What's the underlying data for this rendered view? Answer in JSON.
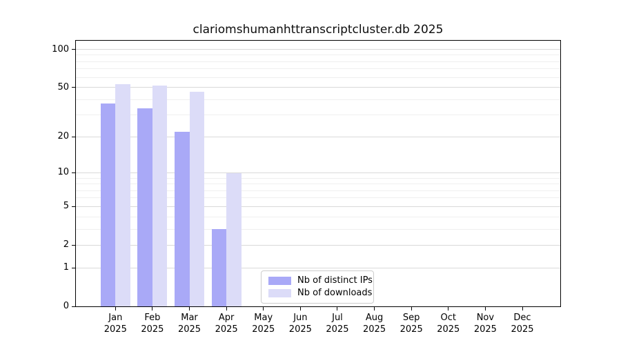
{
  "title": "clariomshumanhttranscriptcluster.db 2025",
  "legend": {
    "items": [
      {
        "label": "Nb of distinct IPs",
        "color": "#a9a9f7"
      },
      {
        "label": "Nb of downloads",
        "color": "#dcdcf8"
      }
    ]
  },
  "chart_data": {
    "type": "bar",
    "title": "clariomshumanhttranscriptcluster.db 2025",
    "categories": [
      "Jan 2025",
      "Feb 2025",
      "Mar 2025",
      "Apr 2025",
      "May 2025",
      "Jun 2025",
      "Jul 2025",
      "Aug 2025",
      "Sep 2025",
      "Oct 2025",
      "Nov 2025",
      "Dec 2025"
    ],
    "series": [
      {
        "name": "Nb of distinct IPs",
        "color": "#a9a9f7",
        "values": [
          37,
          34,
          22,
          3,
          0,
          0,
          0,
          0,
          0,
          0,
          0,
          0
        ]
      },
      {
        "name": "Nb of downloads",
        "color": "#dcdcf8",
        "values": [
          53,
          52,
          46,
          10,
          0,
          0,
          0,
          0,
          0,
          0,
          0,
          0
        ]
      }
    ],
    "xlabel": "",
    "ylabel": "",
    "y_scale": "log1p",
    "y_ticks": [
      0,
      1,
      2,
      5,
      10,
      20,
      50,
      100
    ],
    "y_minor_ticks": [
      3,
      4,
      6,
      7,
      8,
      9,
      30,
      40,
      60,
      70,
      80,
      90
    ],
    "ylim": [
      0,
      117
    ],
    "grid": true,
    "grid_color": "#d9d9d9",
    "grid_minor_color": "#efefef",
    "legend_position": "lower center",
    "background": "#ffffff"
  }
}
